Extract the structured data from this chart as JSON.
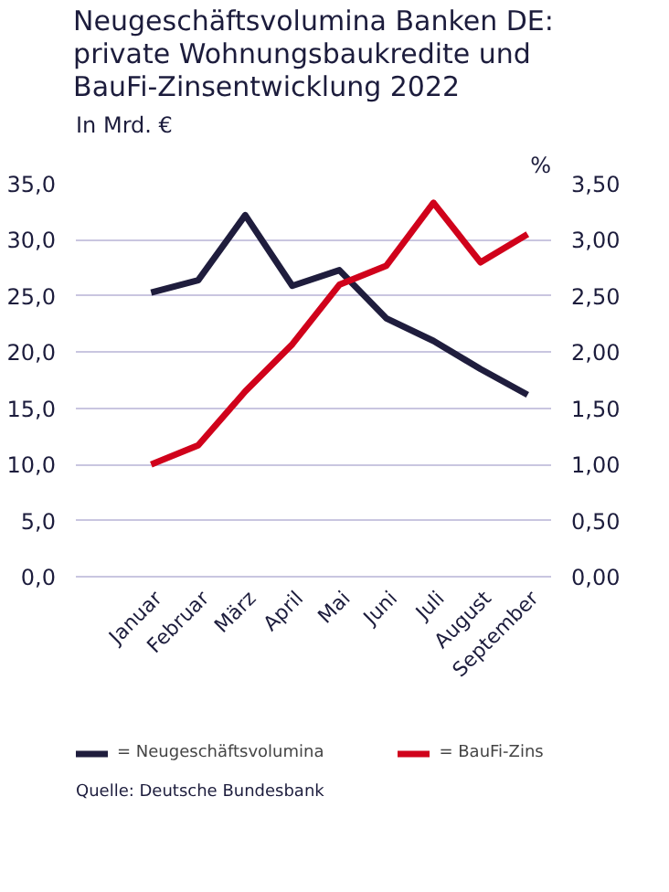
{
  "chart_data": {
    "type": "line",
    "title": "Neugeschäftsvolumina Banken DE:\nprivate Wohnungsbaukredite und\nBauFi-Zinsentwicklung 2022",
    "ylabel": "In Mrd. €",
    "y2label": "%",
    "categories": [
      "Januar",
      "Februar",
      "März",
      "April",
      "Mai",
      "Juni",
      "Juli",
      "August",
      "September"
    ],
    "series": [
      {
        "name": "= Neugeschäftsvolumina",
        "color": "#1f1d3d",
        "values": [
          25.3,
          26.4,
          32.2,
          25.9,
          27.3,
          23.0,
          21.0,
          18.5,
          16.2
        ]
      },
      {
        "name": "= BauFi-Zins",
        "color": "#d0021b",
        "axis": "y2",
        "values": [
          1.0,
          1.17,
          1.65,
          2.07,
          2.6,
          2.77,
          3.33,
          2.8,
          3.05
        ]
      }
    ],
    "ylim": [
      0,
      35
    ],
    "yticks": [
      {
        "value": 0,
        "label": "0,0"
      },
      {
        "value": 5,
        "label": "5,0"
      },
      {
        "value": 10,
        "label": "10,0"
      },
      {
        "value": 15,
        "label": "15,0"
      },
      {
        "value": 20,
        "label": "20,0"
      },
      {
        "value": 25,
        "label": "25,0"
      },
      {
        "value": 30,
        "label": "30,0"
      },
      {
        "value": 35,
        "label": "35,0"
      }
    ],
    "y2lim": [
      0,
      3.5
    ],
    "y2ticks": [
      {
        "value": 0,
        "label": "0,00"
      },
      {
        "value": 0.5,
        "label": "0,50"
      },
      {
        "value": 1,
        "label": "1,00"
      },
      {
        "value": 1.5,
        "label": "1,50"
      },
      {
        "value": 2,
        "label": "2,00"
      },
      {
        "value": 2.5,
        "label": "2,50"
      },
      {
        "value": 3,
        "label": "3,00"
      },
      {
        "value": 3.5,
        "label": "3,50"
      }
    ],
    "grid": "y",
    "legend": "bottom",
    "line_style": "solid",
    "marker": "none",
    "annotations": [
      "Quelle: Deutsche Bundesbank"
    ]
  }
}
